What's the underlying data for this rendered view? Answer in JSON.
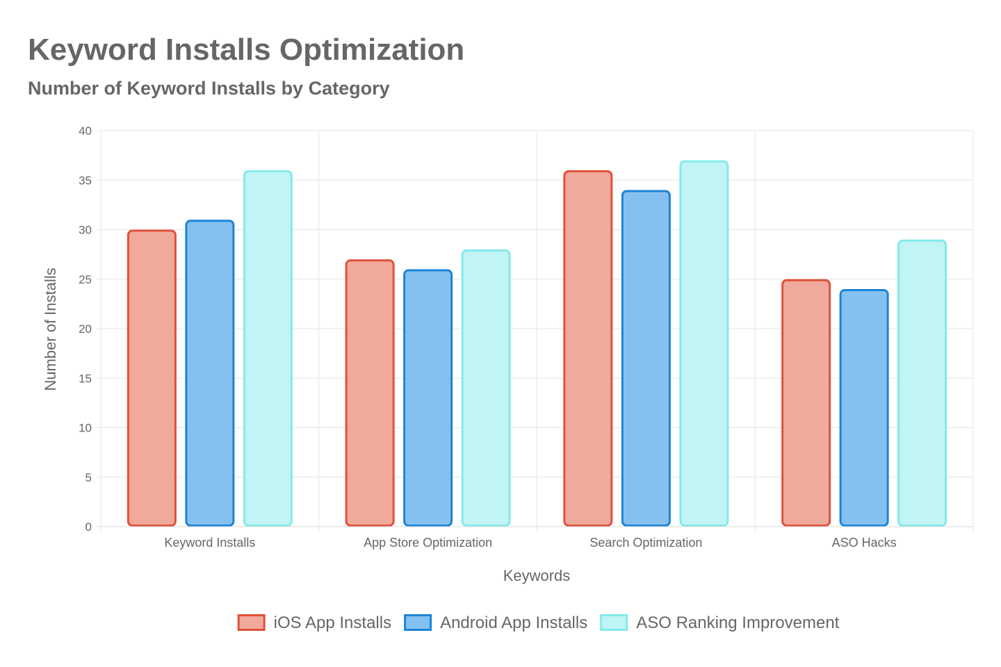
{
  "title": "Keyword Installs Optimization",
  "subtitle": "Number of Keyword Installs by Category",
  "colors": {
    "ios_fill": "#f1a99c",
    "ios_border": "#e0513a",
    "android_fill": "#85c1f0",
    "android_border": "#1a84d9",
    "aso_fill": "#c1f4f4",
    "aso_border": "#84e9ea",
    "grid": "#e6e6e6",
    "text": "#666666"
  },
  "chart_data": {
    "type": "bar",
    "title": "Keyword Installs Optimization",
    "subtitle": "Number of Keyword Installs by Category",
    "xlabel": "Keywords",
    "ylabel": "Number of Installs",
    "ylim": [
      0,
      40
    ],
    "yticks": [
      0,
      5,
      10,
      15,
      20,
      25,
      30,
      35,
      40
    ],
    "grid": true,
    "legend_position": "bottom",
    "categories": [
      "Keyword Installs",
      "App Store Optimization",
      "Search Optimization",
      "ASO Hacks"
    ],
    "series": [
      {
        "name": "iOS App Installs",
        "values": [
          30,
          27,
          36,
          25
        ],
        "fill": "#f1a99c",
        "border": "#e0513a"
      },
      {
        "name": "Android App Installs",
        "values": [
          31,
          26,
          34,
          24
        ],
        "fill": "#85c1f0",
        "border": "#1a84d9"
      },
      {
        "name": "ASO Ranking Improvement",
        "values": [
          36,
          28,
          37,
          29
        ],
        "fill": "#c1f4f4",
        "border": "#84e9ea"
      }
    ]
  }
}
